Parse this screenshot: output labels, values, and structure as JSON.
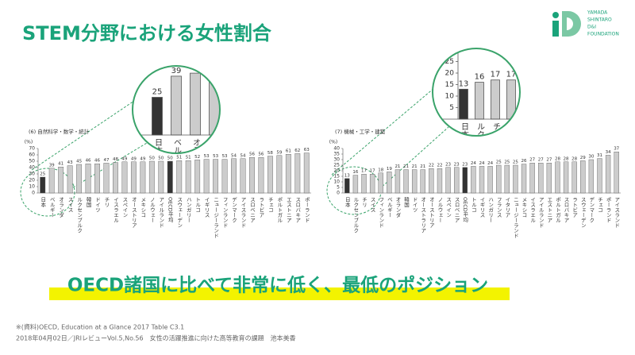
{
  "slide": {
    "title": "STEM分野における女性割合",
    "banner": "OECD諸国に比べて非常に低く、最低のポジション",
    "footnotes": [
      "※(資料)OECD, Education at a Glance 2017 Table C3.1",
      "2018年04月02日／JRIレビューVol.5,No.56　女性の活躍推進に向けた高等教育の課題　池本美香"
    ]
  },
  "logo": {
    "lines": [
      "YAMADA",
      "SHINTARO",
      "D&I",
      "FOUNDATION"
    ]
  },
  "chart_data": [
    {
      "type": "bar",
      "title": "(6) 自然科学・数学・統計",
      "ylabel": "(%)",
      "categories": [
        "日本",
        "ベルギー",
        "オランダ",
        "スイス",
        "ルクセンブルク",
        "韓国",
        "ドイツ",
        "チリ",
        "イスラエル",
        "スペイン",
        "オーストリア",
        "メキシコ",
        "ノルウェー",
        "アイルランド",
        "OECD平均",
        "スウェーデン",
        "ハンガリー",
        "トルコ",
        "イギリス",
        "ニュージーランド",
        "フィンランド",
        "デンマーク",
        "アイスランド",
        "スロベニア",
        "ラトビア",
        "チェコ",
        "ポルトガル",
        "エストニア",
        "スロバキア",
        "ポーランド"
      ],
      "values": [
        25,
        39,
        41,
        43,
        45,
        46,
        46,
        47,
        48,
        49,
        49,
        49,
        50,
        50,
        50,
        51,
        51,
        52,
        53,
        53,
        53,
        54,
        54,
        56,
        56,
        58,
        59,
        61,
        62,
        63
      ],
      "colors": [
        "#333333",
        "#cccccc",
        "#cccccc",
        "#cccccc",
        "#cccccc",
        "#cccccc",
        "#cccccc",
        "#cccccc",
        "#cccccc",
        "#cccccc",
        "#cccccc",
        "#cccccc",
        "#cccccc",
        "#cccccc",
        "#333333",
        "#cccccc",
        "#cccccc",
        "#cccccc",
        "#cccccc",
        "#cccccc",
        "#cccccc",
        "#cccccc",
        "#cccccc",
        "#cccccc",
        "#cccccc",
        "#cccccc",
        "#cccccc",
        "#cccccc",
        "#cccccc",
        "#cccccc"
      ],
      "ylim": [
        0,
        70
      ],
      "yticks": [
        0,
        10,
        20,
        30,
        40,
        50,
        60,
        70
      ]
    },
    {
      "type": "bar",
      "title": "(7) 機械・工学・建築",
      "ylabel": "(%)",
      "categories": [
        "日本",
        "ルクセンブルク",
        "チリ",
        "スイス",
        "フィンランド",
        "ベルギー",
        "オランダ",
        "韓国",
        "ドイツ",
        "オーストラリア",
        "オーストリア",
        "ノルウェー",
        "スペイン",
        "スロベニア",
        "OECD平均",
        "トルコ",
        "イギリス",
        "ハンガリー",
        "フランス",
        "イタリア",
        "ニュージーランド",
        "メキシコ",
        "イスラエル",
        "アイルランド",
        "エストニア",
        "ポルトガル",
        "スロバキア",
        "ラトビア",
        "スウェーデン",
        "デンマーク",
        "チェコ",
        "ポーランド",
        "アイスランド"
      ],
      "values": [
        13,
        16,
        17,
        17,
        18,
        19,
        21,
        21,
        21,
        21,
        22,
        22,
        23,
        23,
        23,
        24,
        24,
        24,
        25,
        25,
        25,
        26,
        27,
        27,
        27,
        28,
        28,
        28,
        29,
        30,
        31,
        34,
        37
      ],
      "colors": [
        "#333333",
        "#cccccc",
        "#cccccc",
        "#cccccc",
        "#cccccc",
        "#cccccc",
        "#cccccc",
        "#cccccc",
        "#cccccc",
        "#cccccc",
        "#cccccc",
        "#cccccc",
        "#cccccc",
        "#cccccc",
        "#333333",
        "#cccccc",
        "#cccccc",
        "#cccccc",
        "#cccccc",
        "#cccccc",
        "#cccccc",
        "#cccccc",
        "#cccccc",
        "#cccccc",
        "#cccccc",
        "#cccccc",
        "#cccccc",
        "#cccccc",
        "#cccccc",
        "#cccccc",
        "#cccccc",
        "#cccccc",
        "#cccccc"
      ],
      "ylim": [
        0,
        40
      ],
      "yticks": [
        0,
        5,
        10,
        15,
        20,
        25,
        30,
        35,
        40
      ]
    }
  ]
}
